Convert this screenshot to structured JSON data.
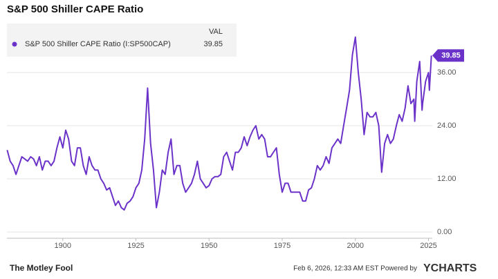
{
  "chart_data": {
    "type": "line",
    "title": "S&P 500 Shiller CAPE Ratio",
    "legend_header": "VAL",
    "series": [
      {
        "name": "S&P 500 Shiller CAPE Ratio (I:SP500CAP)",
        "color": "#6a32c9",
        "x": [
          1881,
          1882,
          1883,
          1884,
          1885,
          1886,
          1887,
          1888,
          1889,
          1890,
          1891,
          1892,
          1893,
          1894,
          1895,
          1896,
          1897,
          1898,
          1899,
          1900,
          1901,
          1902,
          1903,
          1904,
          1905,
          1906,
          1907,
          1908,
          1909,
          1910,
          1911,
          1912,
          1913,
          1914,
          1915,
          1916,
          1917,
          1918,
          1919,
          1920,
          1921,
          1922,
          1923,
          1924,
          1925,
          1926,
          1927,
          1928,
          1929,
          1930,
          1931,
          1932,
          1933,
          1934,
          1935,
          1936,
          1937,
          1938,
          1939,
          1940,
          1941,
          1942,
          1943,
          1944,
          1945,
          1946,
          1947,
          1948,
          1949,
          1950,
          1951,
          1952,
          1953,
          1954,
          1955,
          1956,
          1957,
          1958,
          1959,
          1960,
          1961,
          1962,
          1963,
          1964,
          1965,
          1966,
          1967,
          1968,
          1969,
          1970,
          1971,
          1972,
          1973,
          1974,
          1975,
          1976,
          1977,
          1978,
          1979,
          1980,
          1981,
          1982,
          1983,
          1984,
          1985,
          1986,
          1987,
          1988,
          1989,
          1990,
          1991,
          1992,
          1993,
          1994,
          1995,
          1996,
          1997,
          1998,
          1999,
          2000,
          2001,
          2002,
          2003,
          2004,
          2005,
          2006,
          2007,
          2008,
          2009,
          2010,
          2011,
          2012,
          2013,
          2014,
          2015,
          2016,
          2017,
          2018,
          2019,
          2020,
          2020.3,
          2021,
          2022,
          2022.8,
          2023,
          2024,
          2025,
          2025.3,
          2026
        ],
        "values": [
          18.5,
          16,
          15,
          13,
          15,
          17,
          16.5,
          16,
          17,
          16.5,
          15,
          17,
          14,
          16,
          16,
          15,
          16,
          19,
          21.5,
          19,
          23,
          21,
          16,
          15,
          19,
          19,
          15,
          13,
          17,
          15,
          14,
          14,
          12,
          11,
          9.5,
          10,
          8,
          6,
          7,
          5.5,
          5,
          6.5,
          7,
          8,
          10,
          11,
          14,
          21,
          32.5,
          20,
          14,
          5.5,
          9,
          14,
          13,
          18,
          21,
          13,
          15,
          15,
          11,
          9,
          10,
          11,
          13,
          16,
          12,
          11,
          10,
          10.5,
          12,
          12.5,
          12.5,
          13,
          17,
          18,
          16,
          14,
          18,
          18,
          19,
          21.5,
          19.5,
          21.5,
          23,
          24,
          21,
          22,
          21,
          17,
          17,
          18,
          19,
          13,
          9,
          11,
          11,
          9,
          9,
          9,
          9,
          7,
          7,
          9.5,
          10,
          12,
          15,
          14,
          15,
          17,
          15.5,
          19,
          20,
          21,
          20,
          24,
          28,
          32,
          40,
          44,
          36,
          30,
          22,
          27,
          26,
          26,
          27,
          24,
          13.5,
          20,
          22,
          20,
          21,
          24,
          26.5,
          25,
          28,
          33,
          29,
          30,
          25,
          34,
          38.5,
          27.5,
          29,
          34,
          36,
          32,
          39.85
        ]
      }
    ],
    "xlim": [
      1880.9,
      2026.3
    ],
    "ylim": [
      -1.4,
      47.7
    ],
    "xticks": [
      1900,
      1925,
      1950,
      1975,
      2000,
      2025
    ],
    "yticks": [
      {
        "value": 0,
        "label": "0.00"
      },
      {
        "value": 12,
        "label": "12.00"
      },
      {
        "value": 24,
        "label": "24.00"
      },
      {
        "value": 36,
        "label": "36.00"
      }
    ],
    "grid": true,
    "footer": {
      "brand": "The Motley Fool",
      "timestamp": "Feb 6, 2026, 12:33 AM EST Powered by",
      "provider": "YCHARTS"
    }
  }
}
